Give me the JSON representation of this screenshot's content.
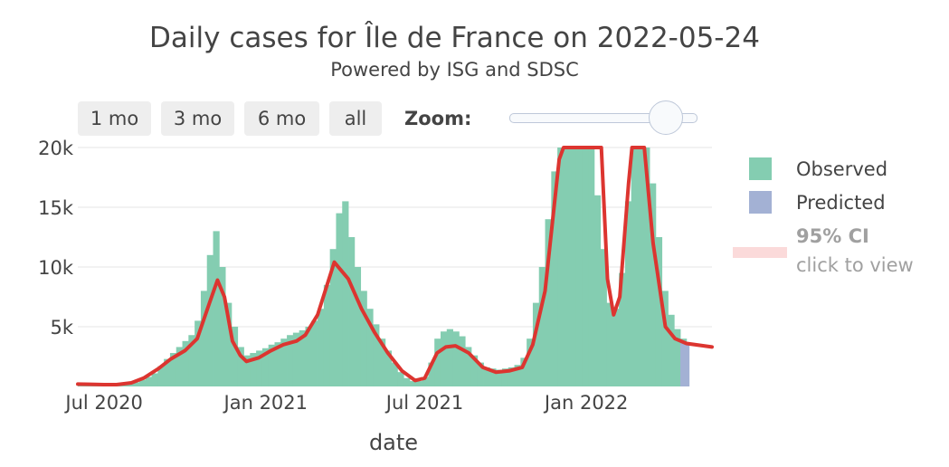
{
  "chart_data": {
    "type": "bar",
    "title": "Daily cases for Île de France on 2022-05-24",
    "subtitle": "Powered by ISG and SDSC",
    "xlabel": "date",
    "ylabel": "",
    "x_range": [
      "2020-06-01",
      "2022-05-24"
    ],
    "ylim": [
      0,
      20000
    ],
    "y_ticks": [
      {
        "value": 5000,
        "label": "5k"
      },
      {
        "value": 10000,
        "label": "10k"
      },
      {
        "value": 15000,
        "label": "15k"
      },
      {
        "value": 20000,
        "label": "20k"
      }
    ],
    "x_ticks": [
      {
        "date": "2020-07-01",
        "label": "Jul 2020"
      },
      {
        "date": "2021-01-01",
        "label": "Jan 2021"
      },
      {
        "date": "2021-07-01",
        "label": "Jul 2021"
      },
      {
        "date": "2022-01-01",
        "label": "Jan 2022"
      }
    ],
    "grid": true,
    "legend_position": "right",
    "colors": {
      "observed": "#84cdb1",
      "predicted": "#a3b1d4",
      "trend": "#dc3530",
      "ci": "#fbdada"
    },
    "observed_bin_days": 7,
    "observed": [
      [
        "2020-06-01",
        250
      ],
      [
        "2020-06-08",
        220
      ],
      [
        "2020-06-15",
        200
      ],
      [
        "2020-06-22",
        180
      ],
      [
        "2020-06-29",
        170
      ],
      [
        "2020-07-06",
        160
      ],
      [
        "2020-07-13",
        170
      ],
      [
        "2020-07-20",
        200
      ],
      [
        "2020-07-27",
        260
      ],
      [
        "2020-08-03",
        350
      ],
      [
        "2020-08-10",
        550
      ],
      [
        "2020-08-17",
        800
      ],
      [
        "2020-08-24",
        1100
      ],
      [
        "2020-08-31",
        1700
      ],
      [
        "2020-09-07",
        2300
      ],
      [
        "2020-09-14",
        2800
      ],
      [
        "2020-09-21",
        3300
      ],
      [
        "2020-09-28",
        3800
      ],
      [
        "2020-10-05",
        4300
      ],
      [
        "2020-10-12",
        5500
      ],
      [
        "2020-10-19",
        8000
      ],
      [
        "2020-10-26",
        11000
      ],
      [
        "2020-11-02",
        13000
      ],
      [
        "2020-11-09",
        10000
      ],
      [
        "2020-11-16",
        7000
      ],
      [
        "2020-11-23",
        5000
      ],
      [
        "2020-11-30",
        3300
      ],
      [
        "2020-12-07",
        2600
      ],
      [
        "2020-12-14",
        2800
      ],
      [
        "2020-12-21",
        3000
      ],
      [
        "2020-12-28",
        3200
      ],
      [
        "2021-01-04",
        3500
      ],
      [
        "2021-01-11",
        3700
      ],
      [
        "2021-01-18",
        4000
      ],
      [
        "2021-01-25",
        4300
      ],
      [
        "2021-02-01",
        4500
      ],
      [
        "2021-02-08",
        4700
      ],
      [
        "2021-02-15",
        5000
      ],
      [
        "2021-02-22",
        5500
      ],
      [
        "2021-03-01",
        6500
      ],
      [
        "2021-03-08",
        8500
      ],
      [
        "2021-03-15",
        11500
      ],
      [
        "2021-03-22",
        14500
      ],
      [
        "2021-03-29",
        15500
      ],
      [
        "2021-04-05",
        12500
      ],
      [
        "2021-04-12",
        10000
      ],
      [
        "2021-04-19",
        8000
      ],
      [
        "2021-04-26",
        6500
      ],
      [
        "2021-05-03",
        5200
      ],
      [
        "2021-05-10",
        4000
      ],
      [
        "2021-05-17",
        3000
      ],
      [
        "2021-05-24",
        2000
      ],
      [
        "2021-05-31",
        1200
      ],
      [
        "2021-06-07",
        700
      ],
      [
        "2021-06-14",
        450
      ],
      [
        "2021-06-21",
        450
      ],
      [
        "2021-06-28",
        800
      ],
      [
        "2021-07-05",
        2000
      ],
      [
        "2021-07-12",
        4000
      ],
      [
        "2021-07-19",
        4600
      ],
      [
        "2021-07-26",
        4800
      ],
      [
        "2021-08-02",
        4600
      ],
      [
        "2021-08-09",
        4200
      ],
      [
        "2021-08-16",
        3300
      ],
      [
        "2021-08-23",
        2600
      ],
      [
        "2021-08-30",
        2000
      ],
      [
        "2021-09-06",
        1600
      ],
      [
        "2021-09-13",
        1500
      ],
      [
        "2021-09-20",
        1400
      ],
      [
        "2021-09-27",
        1500
      ],
      [
        "2021-10-04",
        1600
      ],
      [
        "2021-10-11",
        1800
      ],
      [
        "2021-10-18",
        2400
      ],
      [
        "2021-10-25",
        4000
      ],
      [
        "2021-11-01",
        7000
      ],
      [
        "2021-11-08",
        10000
      ],
      [
        "2021-11-15",
        14000
      ],
      [
        "2021-11-22",
        18000
      ],
      [
        "2021-11-29",
        20000
      ],
      [
        "2021-12-06",
        20000
      ],
      [
        "2021-12-13",
        20000
      ],
      [
        "2021-12-20",
        20000
      ],
      [
        "2021-12-27",
        20000
      ],
      [
        "2022-01-03",
        20000
      ],
      [
        "2022-01-10",
        16000
      ],
      [
        "2022-01-17",
        11500
      ],
      [
        "2022-01-24",
        7000
      ],
      [
        "2022-01-31",
        6500
      ],
      [
        "2022-02-07",
        9500
      ],
      [
        "2022-02-14",
        15500
      ],
      [
        "2022-02-21",
        20000
      ],
      [
        "2022-02-28",
        20000
      ],
      [
        "2022-03-07",
        20000
      ],
      [
        "2022-03-14",
        17000
      ],
      [
        "2022-03-21",
        12500
      ],
      [
        "2022-03-28",
        8000
      ],
      [
        "2022-04-04",
        6000
      ],
      [
        "2022-04-11",
        4800
      ],
      [
        "2022-04-18",
        4000
      ]
    ],
    "predicted_bin_days": 5,
    "predicted": [
      [
        "2022-04-18",
        3600
      ],
      [
        "2022-04-23",
        3500
      ]
    ],
    "trend": [
      [
        "2020-06-01",
        200
      ],
      [
        "2020-06-15",
        180
      ],
      [
        "2020-07-01",
        150
      ],
      [
        "2020-07-15",
        150
      ],
      [
        "2020-08-01",
        300
      ],
      [
        "2020-08-15",
        700
      ],
      [
        "2020-09-01",
        1500
      ],
      [
        "2020-09-15",
        2300
      ],
      [
        "2020-10-01",
        3000
      ],
      [
        "2020-10-15",
        4000
      ],
      [
        "2020-10-29",
        7000
      ],
      [
        "2020-11-07",
        8900
      ],
      [
        "2020-11-15",
        7500
      ],
      [
        "2020-11-24",
        3800
      ],
      [
        "2020-12-03",
        2600
      ],
      [
        "2020-12-10",
        2100
      ],
      [
        "2020-12-24",
        2400
      ],
      [
        "2021-01-07",
        3000
      ],
      [
        "2021-01-21",
        3500
      ],
      [
        "2021-02-05",
        3800
      ],
      [
        "2021-02-15",
        4300
      ],
      [
        "2021-03-01",
        6000
      ],
      [
        "2021-03-20",
        10400
      ],
      [
        "2021-04-05",
        9000
      ],
      [
        "2021-04-20",
        6500
      ],
      [
        "2021-05-05",
        4500
      ],
      [
        "2021-05-20",
        2800
      ],
      [
        "2021-06-05",
        1300
      ],
      [
        "2021-06-20",
        500
      ],
      [
        "2021-07-01",
        700
      ],
      [
        "2021-07-15",
        2800
      ],
      [
        "2021-07-25",
        3300
      ],
      [
        "2021-08-05",
        3400
      ],
      [
        "2021-08-20",
        2800
      ],
      [
        "2021-09-05",
        1600
      ],
      [
        "2021-09-20",
        1200
      ],
      [
        "2021-10-05",
        1300
      ],
      [
        "2021-10-20",
        1600
      ],
      [
        "2021-11-01",
        3500
      ],
      [
        "2021-11-15",
        8000
      ],
      [
        "2021-12-01",
        19000
      ],
      [
        "2021-12-06",
        20000
      ],
      [
        "2022-01-18",
        20000
      ],
      [
        "2022-01-25",
        9000
      ],
      [
        "2022-02-01",
        6000
      ],
      [
        "2022-02-08",
        7500
      ],
      [
        "2022-02-18",
        17000
      ],
      [
        "2022-02-22",
        20000
      ],
      [
        "2022-03-08",
        20000
      ],
      [
        "2022-03-18",
        12000
      ],
      [
        "2022-04-01",
        5000
      ],
      [
        "2022-04-12",
        4000
      ],
      [
        "2022-04-25",
        3600
      ],
      [
        "2022-05-24",
        3300
      ]
    ]
  },
  "buttons": {
    "one_month": "1 mo",
    "three_months": "3 mo",
    "six_months": "6 mo",
    "all": "all"
  },
  "zoom_label": "Zoom:",
  "legend": {
    "observed": "Observed",
    "predicted": "Predicted",
    "ci_title": "95% CI",
    "ci_subtitle": "click to view"
  }
}
